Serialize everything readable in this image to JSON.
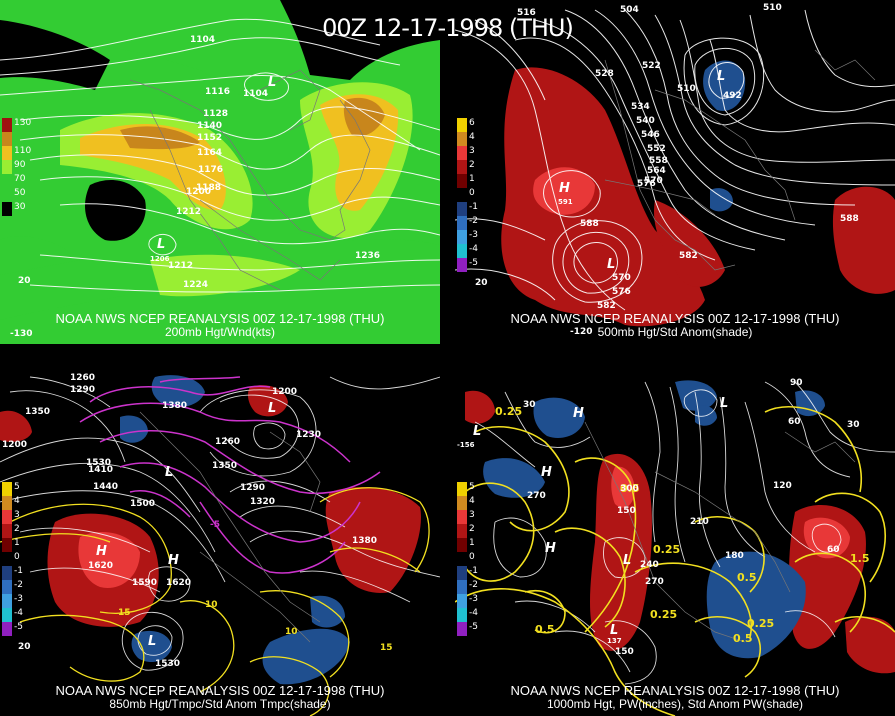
{
  "title": "00Z 12-17-1998 (THU)",
  "colors": {
    "wind_light": "#33cc33",
    "wind_mid": "#99ee33",
    "wind_high": "#f0c020",
    "wind_max": "#c8861c",
    "anom_pos": "#b01515",
    "anom_pos_strong": "#e83838",
    "anom_neg": "#1f4f8f",
    "contour_white": "#ffffff",
    "contour_yellow": "#f2e020",
    "contour_magenta": "#cc33cc"
  },
  "panels": [
    {
      "caption_main": "NOAA NWS NCEP REANALYSIS 00Z 12-17-1998 (THU)",
      "caption_sub": "200mb Hgt/Wnd(kts)",
      "legend": [
        "130",
        "110",
        "90",
        "70",
        "50",
        "30"
      ],
      "labels": [
        "1104",
        "1116",
        "1104",
        "1128",
        "1140",
        "1152",
        "1164",
        "1176",
        "1188",
        "1200",
        "1212",
        "1212",
        "1224",
        "1236",
        "L",
        "L",
        "1206",
        "-130",
        "20"
      ]
    },
    {
      "caption_main": "NOAA NWS NCEP REANALYSIS 00Z 12-17-1998 (THU)",
      "caption_sub": "500mb Hgt/Std Anom(shade)",
      "legend": [
        "6",
        "4",
        "3",
        "2",
        "1",
        "0",
        "-1",
        "-2",
        "-3",
        "-4",
        "-5"
      ],
      "labels": [
        "516",
        "504",
        "510",
        "522",
        "528",
        "534",
        "540",
        "546",
        "552",
        "558",
        "564",
        "570",
        "576",
        "582",
        "588",
        "588",
        "582",
        "510",
        "492",
        "H",
        "591",
        "L",
        "L",
        "570",
        "576",
        "20",
        "-120"
      ]
    },
    {
      "caption_main": "NOAA NWS NCEP REANALYSIS 00Z 12-17-1998 (THU)",
      "caption_sub": "850mb Hgt/Tmpc/Std Anom Tmpc(shade)",
      "legend": [
        "5",
        "4",
        "3",
        "2",
        "1",
        "0",
        "-1",
        "-2",
        "-3",
        "-4",
        "-5"
      ],
      "labels": [
        "1260",
        "1290",
        "1350",
        "1200",
        "1380",
        "1200",
        "1230",
        "1260",
        "1290",
        "1320",
        "1350",
        "1410",
        "1440",
        "1500",
        "1530",
        "1620",
        "1590",
        "1620",
        "1530",
        "1380",
        "H",
        "H",
        "L",
        "L",
        "L",
        "10",
        "10",
        "15",
        "15",
        "-5",
        "20"
      ]
    },
    {
      "caption_main": "NOAA NWS NCEP REANALYSIS 00Z 12-17-1998 (THU)",
      "caption_sub": "1000mb Hgt, PW(inches), Std Anom PW(shade)",
      "legend": [
        "5",
        "4",
        "3",
        "2",
        "1",
        "0",
        "-1",
        "-2",
        "-3",
        "-4",
        "-5"
      ],
      "labels": [
        "0.25",
        "0.25",
        "0.25",
        "0.25",
        "0.5",
        "0.5",
        "0.5",
        "0.5",
        "1.5",
        "30",
        "60",
        "90",
        "120",
        "150",
        "180",
        "210",
        "240",
        "270",
        "270",
        "300",
        "30",
        "60",
        "H",
        "H",
        "H",
        "L",
        "L",
        "L",
        "L",
        "-156",
        "137",
        "150"
      ]
    }
  ]
}
